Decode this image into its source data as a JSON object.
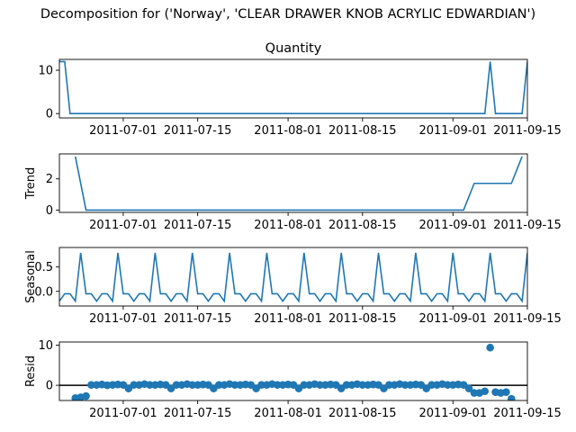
{
  "figure": {
    "suptitle": "Decomposition for ('Norway', 'CLEAR DRAWER KNOB ACRYLIC EDWARDIAN')"
  },
  "chart_data": [
    {
      "type": "line",
      "title": "Quantity",
      "ylabel": "",
      "x_start": "2011-06-19",
      "x_end": "2011-09-15",
      "x_ticks": [
        "2011-07-01",
        "2011-07-15",
        "2011-08-01",
        "2011-08-15",
        "2011-09-01",
        "2011-09-15"
      ],
      "ylim": [
        -1,
        12.5
      ],
      "y_ticks": [
        0,
        10
      ],
      "color": "#1f77b4",
      "x": [
        "2011-06-19",
        "2011-06-20",
        "2011-06-21",
        "2011-09-07",
        "2011-09-08",
        "2011-09-09",
        "2011-09-14",
        "2011-09-15"
      ],
      "y": [
        12,
        12,
        0,
        0,
        12,
        0,
        0,
        12
      ]
    },
    {
      "type": "line",
      "title": "",
      "ylabel": "Trend",
      "x_start": "2011-06-19",
      "x_end": "2011-09-15",
      "x_ticks": [
        "2011-07-01",
        "2011-07-15",
        "2011-08-01",
        "2011-08-15",
        "2011-09-01",
        "2011-09-15"
      ],
      "ylim": [
        -0.15,
        3.6
      ],
      "y_ticks": [
        0,
        2
      ],
      "color": "#1f77b4",
      "x": [
        "2011-06-22",
        "2011-06-24",
        "2011-09-03",
        "2011-09-05",
        "2011-09-12",
        "2011-09-14"
      ],
      "y": [
        3.43,
        0,
        0,
        1.71,
        1.71,
        3.43
      ]
    },
    {
      "type": "line",
      "title": "",
      "ylabel": "Seasonal",
      "x_start": "2011-06-19",
      "x_end": "2011-09-15",
      "x_ticks": [
        "2011-07-01",
        "2011-07-15",
        "2011-08-01",
        "2011-08-15",
        "2011-09-01",
        "2011-09-15"
      ],
      "ylim": [
        -0.3,
        0.9
      ],
      "y_ticks": [
        0.0,
        0.5
      ],
      "y_tick_labels": [
        "0.0",
        "0.5"
      ],
      "color": "#1f77b4",
      "period_start": "2011-06-19",
      "period_values": [
        -0.2,
        -0.05,
        -0.05,
        -0.2,
        0.79,
        -0.05,
        -0.05
      ],
      "x_end_value": -0.2
    },
    {
      "type": "scatter",
      "title": "",
      "ylabel": "Resid",
      "x_start": "2011-06-19",
      "x_end": "2011-09-15",
      "x_ticks": [
        "2011-07-01",
        "2011-07-15",
        "2011-08-01",
        "2011-08-15",
        "2011-09-01",
        "2011-09-15"
      ],
      "ylim": [
        -3.8,
        10.8
      ],
      "y_ticks": [
        0,
        10
      ],
      "color": "#1f77b4",
      "baseline": 0,
      "x": [
        "2011-06-22",
        "2011-06-23",
        "2011-06-24",
        "2011-06-25",
        "2011-06-26",
        "2011-06-27",
        "2011-06-28",
        "2011-06-29",
        "2011-06-30",
        "2011-07-01",
        "2011-07-02",
        "2011-07-03",
        "2011-07-04",
        "2011-07-05",
        "2011-07-06",
        "2011-07-07",
        "2011-07-08",
        "2011-07-09",
        "2011-07-10",
        "2011-07-11",
        "2011-07-12",
        "2011-07-13",
        "2011-07-14",
        "2011-07-15",
        "2011-07-16",
        "2011-07-17",
        "2011-07-18",
        "2011-07-19",
        "2011-07-20",
        "2011-07-21",
        "2011-07-22",
        "2011-07-23",
        "2011-07-24",
        "2011-07-25",
        "2011-07-26",
        "2011-07-27",
        "2011-07-28",
        "2011-07-29",
        "2011-07-30",
        "2011-07-31",
        "2011-08-01",
        "2011-08-02",
        "2011-08-03",
        "2011-08-04",
        "2011-08-05",
        "2011-08-06",
        "2011-08-07",
        "2011-08-08",
        "2011-08-09",
        "2011-08-10",
        "2011-08-11",
        "2011-08-12",
        "2011-08-13",
        "2011-08-14",
        "2011-08-15",
        "2011-08-16",
        "2011-08-17",
        "2011-08-18",
        "2011-08-19",
        "2011-08-20",
        "2011-08-21",
        "2011-08-22",
        "2011-08-23",
        "2011-08-24",
        "2011-08-25",
        "2011-08-26",
        "2011-08-27",
        "2011-08-28",
        "2011-08-29",
        "2011-08-30",
        "2011-08-31",
        "2011-09-01",
        "2011-09-02",
        "2011-09-03",
        "2011-09-04",
        "2011-09-05",
        "2011-09-06",
        "2011-09-07",
        "2011-09-08",
        "2011-09-09",
        "2011-09-10",
        "2011-09-11",
        "2011-09-12"
      ],
      "y": [
        -3.2,
        -3.0,
        -2.7,
        0.1,
        0.1,
        0.2,
        0.0,
        0.1,
        0.2,
        0.1,
        -0.8,
        0.1,
        0.1,
        0.3,
        0.1,
        0.1,
        0.2,
        0.1,
        -0.8,
        0.1,
        0.1,
        0.3,
        0.1,
        0.1,
        0.2,
        0.1,
        -0.8,
        0.1,
        0.1,
        0.3,
        0.1,
        0.1,
        0.2,
        0.1,
        -0.8,
        0.1,
        0.1,
        0.3,
        0.1,
        0.1,
        0.2,
        0.1,
        -0.8,
        0.1,
        0.1,
        0.3,
        0.1,
        0.1,
        0.2,
        0.1,
        -0.8,
        0.1,
        0.1,
        0.3,
        0.1,
        0.1,
        0.2,
        0.1,
        -0.8,
        0.1,
        0.1,
        0.3,
        0.1,
        0.1,
        0.2,
        0.1,
        -0.8,
        0.1,
        0.1,
        0.3,
        0.1,
        0.1,
        0.2,
        0.1,
        -0.8,
        -1.9,
        -1.9,
        -1.5,
        9.4,
        -1.7,
        -1.9,
        -1.7,
        -3.4
      ]
    }
  ]
}
